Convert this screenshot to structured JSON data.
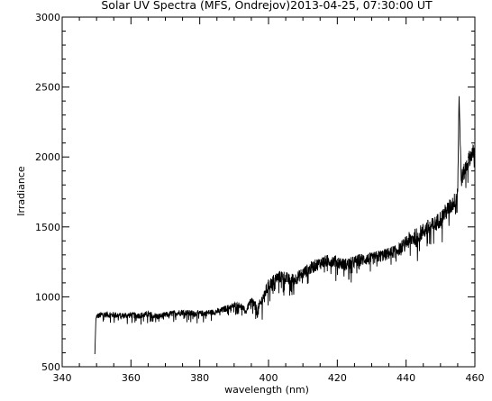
{
  "chart_data": {
    "type": "line",
    "title": "Solar UV Spectra (MFS, Ondrejov)2013-04-25, 07:30:00 UT",
    "xlabel": "wavelength (nm)",
    "ylabel": "Irradiance",
    "xlim": [
      340,
      460
    ],
    "ylim": [
      500,
      3000
    ],
    "xticks": [
      340,
      360,
      380,
      400,
      420,
      440,
      460
    ],
    "yticks": [
      500,
      1000,
      1500,
      2000,
      2500,
      3000
    ],
    "grid": false,
    "series": [
      {
        "color": "#000000",
        "x": [
          349.5,
          349.8,
          350,
          352,
          355,
          358,
          360,
          362,
          365,
          368,
          370,
          372,
          375,
          378,
          380,
          382,
          384,
          386,
          388,
          390,
          392,
          393.4,
          394.5,
          395.5,
          396.8,
          397.5,
          398.5,
          400,
          402,
          404,
          406,
          408,
          410,
          412,
          414,
          416,
          418,
          420,
          422,
          424,
          426,
          428,
          430,
          432,
          434,
          436,
          438,
          440,
          442,
          444,
          446,
          448,
          450,
          452,
          454,
          455,
          455.4,
          456,
          457,
          458,
          459,
          460
        ],
        "y": [
          590,
          840,
          860,
          875,
          870,
          865,
          870,
          865,
          875,
          860,
          870,
          880,
          890,
          880,
          880,
          885,
          890,
          900,
          920,
          940,
          940,
          890,
          960,
          960,
          890,
          940,
          1000,
          1080,
          1130,
          1150,
          1120,
          1130,
          1170,
          1200,
          1230,
          1250,
          1260,
          1250,
          1230,
          1240,
          1260,
          1270,
          1270,
          1290,
          1300,
          1320,
          1340,
          1390,
          1420,
          1450,
          1490,
          1510,
          1560,
          1620,
          1680,
          1760,
          2450,
          1840,
          1900,
          1970,
          2020,
          2040
        ]
      }
    ]
  }
}
